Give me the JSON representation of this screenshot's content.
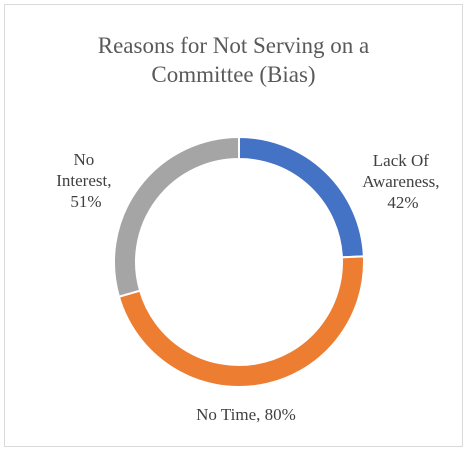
{
  "chart_data": {
    "type": "pie",
    "style": "doughnut",
    "title_lines": [
      "Reasons for Not Serving on a",
      "Committee (Bias)"
    ],
    "categories": [
      "Lack Of Awareness",
      "No Time",
      "No Interest"
    ],
    "values": [
      42,
      80,
      51
    ],
    "unit": "%",
    "colors": [
      "#4472c4",
      "#ed7d31",
      "#a5a5a5"
    ],
    "data_labels": [
      [
        "Lack Of",
        "Awareness,",
        "42%"
      ],
      [
        "No Time, 80%"
      ],
      [
        "No",
        "Interest,",
        "51%"
      ]
    ]
  }
}
